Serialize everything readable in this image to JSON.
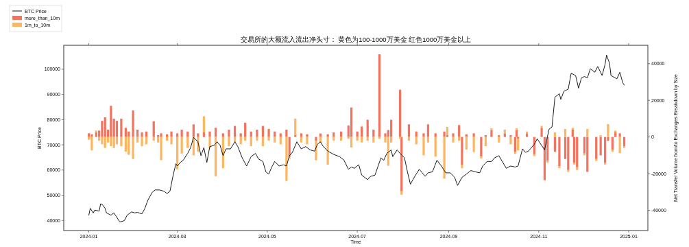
{
  "chart_data": {
    "type": "bar",
    "title": "交易所的大额流入流出净头寸： 黄色为100-1000万美金 红色1000万美金以上",
    "xlabel": "Time",
    "ylabel": "BTC Price",
    "y2label": "Net Transfer Volume from/to Exchanges Breakdown by Size",
    "legend": "top left",
    "stacked": true,
    "xlim": [
      "2023-12-15",
      "2025-01-14"
    ],
    "xticks": [
      {
        "value": "2024-01-01",
        "label": "2024-01"
      },
      {
        "value": "2024-03-01",
        "label": "2024-03"
      },
      {
        "value": "2024-05-01",
        "label": "2024-05"
      },
      {
        "value": "2024-07-01",
        "label": "2024-07"
      },
      {
        "value": "2024-09-01",
        "label": "2024-09"
      },
      {
        "value": "2024-11-01",
        "label": "2024-11"
      },
      {
        "value": "2025-01-01",
        "label": "2025-01"
      }
    ],
    "ylim": [
      36000,
      109500
    ],
    "yticks": [
      40000,
      50000,
      60000,
      70000,
      80000,
      90000,
      100000
    ],
    "y2lim": [
      -51000,
      50000
    ],
    "y2ticks": [
      -40000,
      -20000,
      0,
      20000,
      40000
    ],
    "x": [
      "2024-01-01",
      "2024-01-03",
      "2024-01-06",
      "2024-01-08",
      "2024-01-10",
      "2024-01-12",
      "2024-01-14",
      "2024-01-16",
      "2024-01-18",
      "2024-01-20",
      "2024-01-23",
      "2024-01-26",
      "2024-01-28",
      "2024-01-31",
      "2024-02-03",
      "2024-02-06",
      "2024-02-09",
      "2024-02-14",
      "2024-02-17",
      "2024-02-19",
      "2024-02-23",
      "2024-02-26",
      "2024-03-01",
      "2024-03-04",
      "2024-03-08",
      "2024-03-12",
      "2024-03-15",
      "2024-03-19",
      "2024-03-23",
      "2024-03-27",
      "2024-04-01",
      "2024-04-05",
      "2024-04-09",
      "2024-04-13",
      "2024-04-16",
      "2024-04-20",
      "2024-04-24",
      "2024-04-28",
      "2024-05-02",
      "2024-05-06",
      "2024-05-10",
      "2024-05-14",
      "2024-05-16",
      "2024-05-20",
      "2024-05-24",
      "2024-05-28",
      "2024-06-03",
      "2024-06-06",
      "2024-06-11",
      "2024-06-15",
      "2024-06-20",
      "2024-06-25",
      "2024-06-27",
      "2024-07-01",
      "2024-07-04",
      "2024-07-08",
      "2024-07-12",
      "2024-07-16",
      "2024-07-20",
      "2024-07-22",
      "2024-07-24",
      "2024-07-30",
      "2024-07-31",
      "2024-08-05",
      "2024-08-10",
      "2024-08-15",
      "2024-08-18",
      "2024-08-23",
      "2024-08-29",
      "2024-08-31",
      "2024-09-04",
      "2024-09-08",
      "2024-09-10",
      "2024-09-13",
      "2024-09-18",
      "2024-09-23",
      "2024-09-26",
      "2024-09-30",
      "2024-10-05",
      "2024-10-09",
      "2024-10-13",
      "2024-10-16",
      "2024-10-17",
      "2024-10-18",
      "2024-10-24",
      "2024-10-29",
      "2024-11-03",
      "2024-11-05",
      "2024-11-07",
      "2024-11-12",
      "2024-11-15",
      "2024-11-19",
      "2024-11-21",
      "2024-11-24",
      "2024-11-25",
      "2024-11-27",
      "2024-12-02",
      "2024-12-04",
      "2024-12-10",
      "2024-12-13",
      "2024-12-16",
      "2024-12-18",
      "2024-12-21",
      "2024-12-23",
      "2024-12-26",
      "2024-12-29"
    ],
    "series": [
      {
        "name": "BTC Price",
        "type": "line",
        "color": "#1a1a1a",
        "x": [
          "2024-01-01",
          "2024-01-02",
          "2024-01-04",
          "2024-01-05",
          "2024-01-08",
          "2024-01-09",
          "2024-01-10",
          "2024-01-12",
          "2024-01-13",
          "2024-01-16",
          "2024-01-18",
          "2024-01-20",
          "2024-01-22",
          "2024-01-25",
          "2024-01-27",
          "2024-01-30",
          "2024-02-01",
          "2024-02-03",
          "2024-02-06",
          "2024-02-08",
          "2024-02-10",
          "2024-02-13",
          "2024-02-15",
          "2024-02-18",
          "2024-02-21",
          "2024-02-23",
          "2024-02-25",
          "2024-02-27",
          "2024-02-29",
          "2024-03-01",
          "2024-03-03",
          "2024-03-05",
          "2024-03-08",
          "2024-03-10",
          "2024-03-12",
          "2024-03-15",
          "2024-03-17",
          "2024-03-19",
          "2024-03-21",
          "2024-03-23",
          "2024-03-26",
          "2024-03-28",
          "2024-03-30",
          "2024-04-01",
          "2024-04-03",
          "2024-04-06",
          "2024-04-09",
          "2024-04-11",
          "2024-04-14",
          "2024-04-17",
          "2024-04-20",
          "2024-04-23",
          "2024-04-25",
          "2024-04-28",
          "2024-04-30",
          "2024-05-02",
          "2024-05-04",
          "2024-05-06",
          "2024-05-09",
          "2024-05-12",
          "2024-05-14",
          "2024-05-16",
          "2024-05-18",
          "2024-05-21",
          "2024-05-24",
          "2024-05-27",
          "2024-05-30",
          "2024-06-02",
          "2024-06-04",
          "2024-06-06",
          "2024-06-08",
          "2024-06-11",
          "2024-06-15",
          "2024-06-19",
          "2024-06-22",
          "2024-06-25",
          "2024-06-27",
          "2024-06-29",
          "2024-07-02",
          "2024-07-04",
          "2024-07-06",
          "2024-07-08",
          "2024-07-10",
          "2024-07-13",
          "2024-07-17",
          "2024-07-19",
          "2024-07-21",
          "2024-07-24",
          "2024-07-25",
          "2024-07-28",
          "2024-07-30",
          "2024-08-02",
          "2024-08-04",
          "2024-08-06",
          "2024-08-09",
          "2024-08-12",
          "2024-08-14",
          "2024-08-16",
          "2024-08-18",
          "2024-08-21",
          "2024-08-24",
          "2024-08-27",
          "2024-08-30",
          "2024-09-02",
          "2024-09-05",
          "2024-09-07",
          "2024-09-10",
          "2024-09-13",
          "2024-09-16",
          "2024-09-19",
          "2024-09-22",
          "2024-09-24",
          "2024-09-27",
          "2024-09-30",
          "2024-10-02",
          "2024-10-05",
          "2024-10-10",
          "2024-10-13",
          "2024-10-16",
          "2024-10-18",
          "2024-10-21",
          "2024-10-23",
          "2024-10-25",
          "2024-10-29",
          "2024-10-31",
          "2024-11-02",
          "2024-11-05",
          "2024-11-08",
          "2024-11-10",
          "2024-11-12",
          "2024-11-15",
          "2024-11-16",
          "2024-11-18",
          "2024-11-21",
          "2024-11-23",
          "2024-11-26",
          "2024-11-28",
          "2024-11-30",
          "2024-12-02",
          "2024-12-04",
          "2024-12-06",
          "2024-12-09",
          "2024-12-11",
          "2024-12-14",
          "2024-12-16",
          "2024-12-17",
          "2024-12-19",
          "2024-12-20",
          "2024-12-24",
          "2024-12-26",
          "2024-12-28",
          "2024-12-29"
        ],
        "values": [
          42100,
          44800,
          43000,
          44100,
          43700,
          46600,
          46400,
          44800,
          43000,
          42100,
          43000,
          41200,
          39400,
          39900,
          42100,
          43400,
          43000,
          43200,
          42600,
          44800,
          48000,
          51200,
          52100,
          52100,
          51600,
          50700,
          51600,
          57500,
          62500,
          61600,
          63000,
          63900,
          66600,
          68900,
          73000,
          71200,
          65700,
          68900,
          63000,
          69300,
          69800,
          71200,
          69800,
          65700,
          68400,
          68400,
          71200,
          69300,
          64800,
          61600,
          65300,
          66600,
          64400,
          63400,
          59300,
          58400,
          61200,
          63400,
          61600,
          62100,
          61600,
          65700,
          67000,
          71200,
          68400,
          69300,
          68000,
          67500,
          70200,
          71200,
          69300,
          67500,
          66200,
          65300,
          63900,
          60300,
          61200,
          60700,
          62100,
          58000,
          57100,
          56200,
          57500,
          58000,
          64800,
          63900,
          66600,
          68000,
          65300,
          68000,
          66600,
          64800,
          59300,
          54400,
          57500,
          60300,
          58900,
          57500,
          58900,
          59300,
          63900,
          61600,
          58900,
          58900,
          57100,
          53900,
          57100,
          58400,
          59800,
          59300,
          58900,
          61600,
          63400,
          63400,
          64800,
          65700,
          60700,
          61600,
          61200,
          61600,
          68400,
          67000,
          67500,
          70200,
          72400,
          70600,
          68000,
          76200,
          77100,
          88900,
          90300,
          88000,
          91200,
          92100,
          98400,
          97500,
          92500,
          96600,
          97100,
          96600,
          100200,
          98800,
          101100,
          97500,
          102000,
          105600,
          102400,
          97500,
          96200,
          98800,
          94600,
          93700
        ]
      },
      {
        "name": "more_than_10m",
        "color": "#f4735f",
        "axis": "y2",
        "values": [
          2000,
          1500,
          2500,
          3500,
          8800,
          10700,
          4000,
          17000,
          10000,
          8800,
          10000,
          5000,
          3000,
          14500,
          4000,
          2500,
          3000,
          8600,
          1000,
          2000,
          1500,
          3000,
          2000,
          4000,
          3000,
          6900,
          2000,
          2500,
          3000,
          5000,
          2000,
          4000,
          6000,
          2000,
          7800,
          3000,
          4000,
          6000,
          4400,
          3000,
          2000,
          4000,
          -10700,
          1000,
          2000,
          1500,
          -2000,
          1900,
          1500,
          2500,
          3000,
          6300,
          16100,
          3000,
          5700,
          9400,
          4000,
          45100,
          2000,
          3800,
          9400,
          25800,
          -29600,
          6900,
          3000,
          2000,
          6900,
          2000,
          3000,
          1000,
          2000,
          6500,
          -15100,
          1500,
          2000,
          -10700,
          1000,
          3800,
          1000,
          2000,
          1000,
          -8200,
          3800,
          -1000,
          2000,
          -9400,
          5000,
          -23300,
          -13000,
          -8000,
          -16000,
          -12000,
          -18000,
          4000,
          -14000,
          -16500,
          -9000,
          -19000,
          -12000,
          -10000,
          -14000,
          -2000,
          -7000,
          2500,
          2000,
          -5000
        ]
      },
      {
        "name": "1m_to_10m",
        "color": "#fdb660",
        "axis": "y2",
        "values": [
          -1500,
          -7300,
          1000,
          -2000,
          -4000,
          -6000,
          -3000,
          -5000,
          -6000,
          -4000,
          -5000,
          -8000,
          -9700,
          -12000,
          -3000,
          -5000,
          -4000,
          -2000,
          -3000,
          -12600,
          -2000,
          -4000,
          -17600,
          -9000,
          -6000,
          -10000,
          -8000,
          8800,
          -6000,
          -21400,
          -17000,
          -5000,
          -3000,
          -4000,
          -2000,
          -5000,
          -2000,
          -5000,
          -2000,
          -3000,
          -4000,
          -24000,
          -1000,
          9000,
          -3000,
          -4000,
          -10700,
          -3000,
          -15100,
          -2000,
          -2000,
          -1000,
          -5700,
          -2000,
          -3000,
          -2000,
          -3000,
          -1000,
          -3000,
          -15700,
          -3000,
          -1000,
          -1900,
          -2000,
          -4000,
          -10000,
          -3000,
          -10700,
          -22700,
          4500,
          -3000,
          -2000,
          -1900,
          -6900,
          -8200,
          -1000,
          -5000,
          1000,
          -3000,
          2000,
          -4000,
          -1000,
          1000,
          -6300,
          1000,
          -1000,
          1000,
          -500,
          -1000,
          2500,
          -1000,
          4400,
          -1000,
          1000,
          -1000,
          -1500,
          -1000,
          4400,
          -1000,
          1000,
          -1000,
          7000,
          -1000,
          1000,
          -8800,
          -1000
        ]
      }
    ]
  }
}
